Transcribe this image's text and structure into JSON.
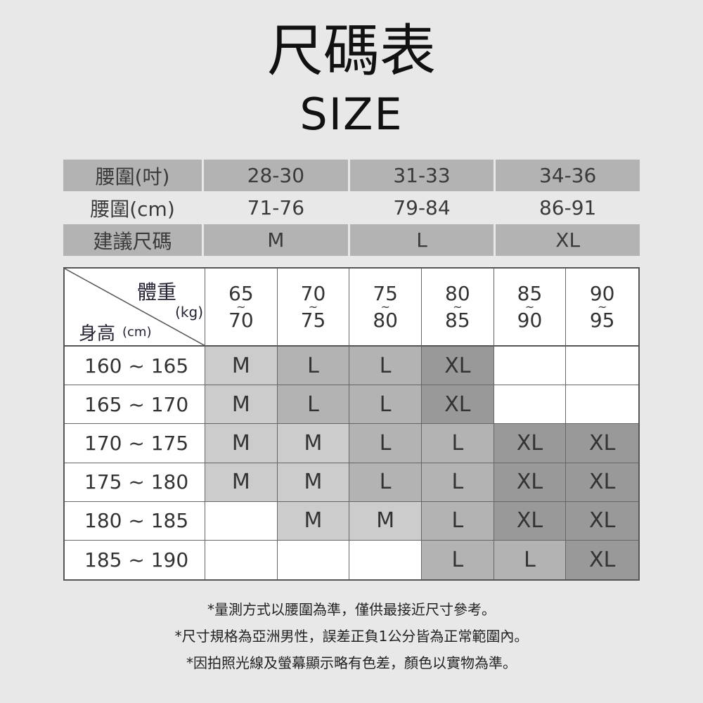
{
  "title": "尺碼表",
  "subtitle": "SIZE",
  "waist_table": {
    "rows": [
      {
        "label": "腰圍(吋)",
        "values": [
          "28-30",
          "31-33",
          "34-36"
        ],
        "shaded": true
      },
      {
        "label": "腰圍(cm)",
        "values": [
          "71-76",
          "79-84",
          "86-91"
        ],
        "shaded": false
      },
      {
        "label": "建議尺碼",
        "values": [
          "M",
          "L",
          "XL"
        ],
        "shaded": true
      }
    ]
  },
  "size_table": {
    "corner": {
      "weight_label": "體重",
      "weight_unit": "(kg)",
      "height_label": "身高",
      "height_unit": "(cm)"
    },
    "weight_columns": [
      {
        "from": "65",
        "sep": "~",
        "to": "70"
      },
      {
        "from": "70",
        "sep": "~",
        "to": "75"
      },
      {
        "from": "75",
        "sep": "~",
        "to": "80"
      },
      {
        "from": "80",
        "sep": "~",
        "to": "85"
      },
      {
        "from": "85",
        "sep": "~",
        "to": "90"
      },
      {
        "from": "90",
        "sep": "~",
        "to": "95"
      }
    ],
    "rows": [
      {
        "height": "160 ~ 165",
        "sizes": [
          "M",
          "L",
          "L",
          "XL",
          "",
          ""
        ]
      },
      {
        "height": "165 ~ 170",
        "sizes": [
          "M",
          "L",
          "L",
          "XL",
          "",
          ""
        ]
      },
      {
        "height": "170 ~ 175",
        "sizes": [
          "M",
          "M",
          "L",
          "L",
          "XL",
          "XL"
        ]
      },
      {
        "height": "175 ~ 180",
        "sizes": [
          "M",
          "M",
          "L",
          "L",
          "XL",
          "XL"
        ]
      },
      {
        "height": "180 ~ 185",
        "sizes": [
          "",
          "M",
          "M",
          "L",
          "XL",
          "XL"
        ]
      },
      {
        "height": "185 ~ 190",
        "sizes": [
          "",
          "",
          "",
          "L",
          "L",
          "XL"
        ]
      }
    ],
    "colors": {
      "M": "#cccccc",
      "L": "#b3b3b3",
      "XL": "#999999",
      "empty": "#ffffff"
    }
  },
  "notes": [
    "*量測方式以腰圍為準，僅供最接近尺寸參考。",
    "*尺寸規格為亞洲男性，誤差正負1公分皆為正常範圍內。",
    "*因拍照光線及螢幕顯示略有色差，顏色以實物為準。"
  ]
}
